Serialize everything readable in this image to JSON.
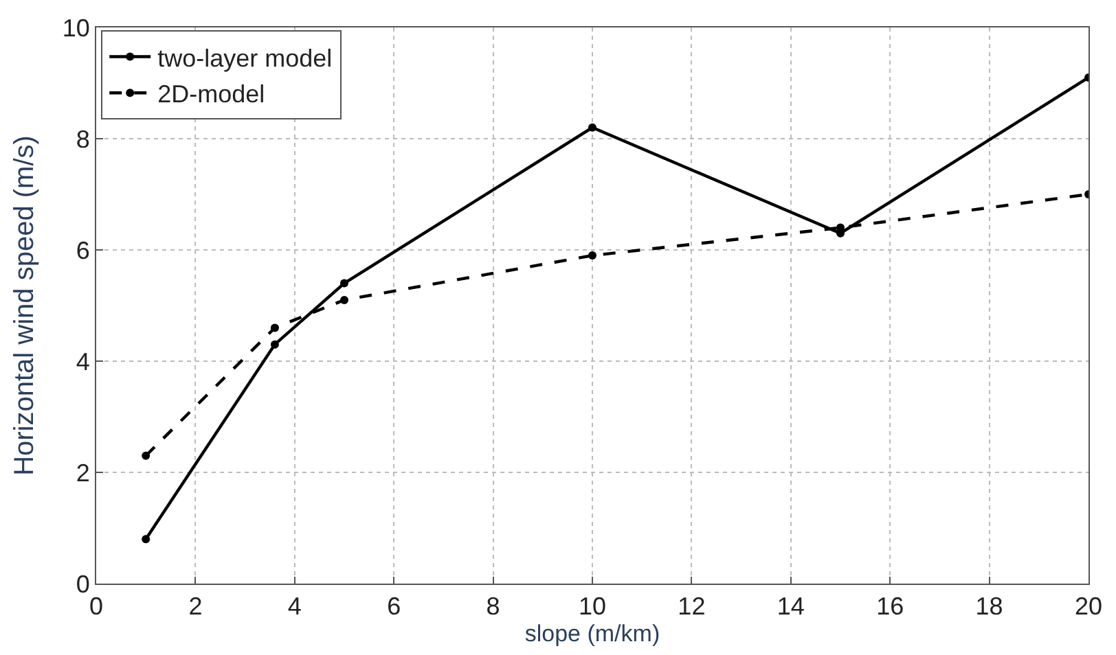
{
  "chart_data": {
    "type": "line",
    "xlabel": "slope (m/km)",
    "ylabel": "Horizontal wind speed (m/s)",
    "x": [
      1,
      3.6,
      5,
      10,
      15,
      20
    ],
    "series": [
      {
        "name": "two-layer model",
        "color": "#000000",
        "line_style": "solid",
        "values": [
          0.8,
          4.3,
          5.4,
          8.2,
          6.3,
          9.1
        ]
      },
      {
        "name": "2D-model",
        "color": "#000000",
        "line_style": "dashed",
        "values": [
          2.3,
          4.6,
          5.1,
          5.9,
          6.4,
          7.0
        ]
      }
    ],
    "xlim": [
      0,
      20
    ],
    "xticks": [
      0,
      2,
      4,
      6,
      8,
      10,
      12,
      14,
      16,
      18,
      20
    ],
    "ylim": [
      0,
      10
    ],
    "yticks": [
      0,
      2,
      4,
      6,
      8,
      10
    ],
    "grid": true,
    "legend": "top left",
    "marker": "circle"
  }
}
